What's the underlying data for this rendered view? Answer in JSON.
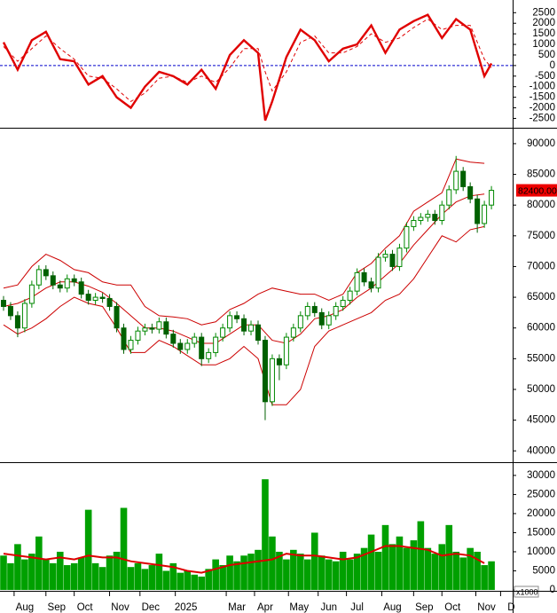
{
  "chart_data": [
    {
      "type": "line",
      "ylim": [
        -2900,
        3100
      ],
      "yticks": [
        -2500,
        -2000,
        -1500,
        -1000,
        -500,
        0,
        500,
        1000,
        1500,
        2000,
        2500
      ],
      "zero_color": "#0000cc",
      "series": [
        {
          "color": "#e00000",
          "style": "solid",
          "x": [
            0,
            2,
            4,
            6,
            8,
            10,
            12,
            14,
            16,
            18,
            20,
            22,
            24,
            26,
            28,
            30,
            32,
            34,
            36,
            37,
            38,
            40,
            42,
            44,
            46,
            48,
            50,
            52,
            54,
            56,
            58,
            60,
            62,
            64,
            66,
            68,
            69
          ],
          "values": [
            1100,
            -200,
            1200,
            1600,
            300,
            200,
            -900,
            -500,
            -1500,
            -2000,
            -1000,
            -300,
            -500,
            -900,
            -200,
            -1100,
            500,
            1200,
            600,
            -2600,
            -1700,
            400,
            1700,
            1200,
            200,
            800,
            1000,
            1900,
            600,
            1700,
            2100,
            2400,
            1300,
            2200,
            1700,
            -500,
            100
          ]
        },
        {
          "color": "#e00000",
          "style": "dashed",
          "x": [
            0,
            2,
            4,
            6,
            8,
            10,
            12,
            14,
            16,
            18,
            20,
            22,
            24,
            26,
            28,
            30,
            32,
            34,
            36,
            37,
            38,
            40,
            42,
            44,
            46,
            48,
            50,
            52,
            54,
            56,
            58,
            60,
            62,
            64,
            66,
            68,
            69
          ],
          "values": [
            900,
            200,
            800,
            1400,
            800,
            300,
            -500,
            -600,
            -1100,
            -1700,
            -1300,
            -600,
            -500,
            -800,
            -500,
            -800,
            -100,
            800,
            800,
            -300,
            -1200,
            -300,
            1100,
            1400,
            600,
            600,
            900,
            1500,
            1100,
            1300,
            1800,
            2200,
            1700,
            1900,
            1900,
            300,
            -100
          ]
        }
      ]
    },
    {
      "type": "candlestick",
      "ylim": [
        38300,
        92300
      ],
      "yticks": [
        40000,
        45000,
        50000,
        55000,
        60000,
        65000,
        70000,
        75000,
        80000,
        85000,
        90000
      ],
      "up_color": "#008800",
      "down_color": "#006000",
      "open": [
        64500,
        63500,
        62000,
        60000,
        64000,
        67000,
        69500,
        68500,
        67000,
        66500,
        68000,
        67500,
        65500,
        64500,
        65000,
        64800,
        63500,
        60000,
        56500,
        58000,
        59500,
        60000,
        59800,
        61000,
        59000,
        57500,
        56500,
        57500,
        58500,
        55000,
        56000,
        58500,
        60000,
        62000,
        61500,
        59500,
        60500,
        58000,
        48000,
        55000,
        54000,
        58500,
        60000,
        62000,
        63500,
        62500,
        60500,
        62000,
        63500,
        64500,
        66000,
        69000,
        67500,
        66500,
        71500,
        72000,
        70000,
        73000,
        76500,
        77500,
        78000,
        78500,
        77500,
        80000,
        82500,
        85500,
        83000,
        81000,
        77000,
        80000
      ],
      "high": [
        65200,
        64200,
        62700,
        64700,
        67700,
        70200,
        70200,
        69200,
        67700,
        68700,
        68700,
        68200,
        66200,
        65700,
        65700,
        65500,
        64200,
        60700,
        58700,
        60200,
        60700,
        60700,
        61700,
        61700,
        59700,
        58200,
        58200,
        59200,
        59200,
        56700,
        59200,
        60700,
        62700,
        62700,
        62200,
        61200,
        61200,
        58700,
        55700,
        55700,
        59200,
        60700,
        62700,
        64200,
        64200,
        63200,
        62700,
        64200,
        65200,
        66700,
        69700,
        69700,
        68200,
        72200,
        72700,
        72700,
        73700,
        77200,
        78200,
        78700,
        79200,
        79200,
        80700,
        83200,
        88000,
        86200,
        83700,
        81700,
        80700,
        83100
      ],
      "low": [
        62800,
        61300,
        58500,
        59300,
        63300,
        66300,
        67800,
        66300,
        65800,
        65800,
        66800,
        64800,
        63800,
        63800,
        64100,
        62800,
        59300,
        55800,
        55800,
        57300,
        58800,
        59100,
        59100,
        58300,
        56800,
        55800,
        55800,
        56800,
        53800,
        54300,
        55300,
        57800,
        59300,
        60800,
        58800,
        58800,
        57300,
        45000,
        47300,
        51500,
        53300,
        57800,
        59300,
        61300,
        61800,
        59800,
        59800,
        61300,
        62800,
        63800,
        65300,
        66800,
        65800,
        65800,
        70800,
        69300,
        69300,
        72300,
        75800,
        76800,
        77300,
        76800,
        76800,
        79300,
        81800,
        82300,
        80300,
        75500,
        76300,
        79300
      ],
      "close": [
        63500,
        62000,
        60000,
        64000,
        67000,
        69500,
        68500,
        67000,
        66500,
        68000,
        67500,
        65500,
        64500,
        65000,
        64800,
        63500,
        60000,
        56500,
        58000,
        59500,
        60000,
        59800,
        61000,
        59000,
        57500,
        56500,
        57500,
        58500,
        55000,
        56000,
        58500,
        60000,
        62000,
        61500,
        59500,
        60500,
        58000,
        48000,
        55000,
        54000,
        58500,
        60000,
        62000,
        63500,
        62500,
        60500,
        62000,
        63500,
        64500,
        66000,
        69000,
        67500,
        66500,
        71500,
        72000,
        70000,
        73000,
        76500,
        77500,
        78000,
        78500,
        77500,
        80000,
        82500,
        85500,
        83000,
        81000,
        77000,
        80000,
        82400
      ],
      "last_label": "82400.00",
      "last_color": "#ee0000",
      "bands": [
        {
          "color": "#cc0000",
          "x": [
            0,
            2,
            4,
            6,
            8,
            10,
            12,
            14,
            16,
            18,
            20,
            22,
            24,
            26,
            28,
            30,
            32,
            34,
            36,
            38,
            40,
            42,
            44,
            46,
            48,
            50,
            52,
            54,
            56,
            58,
            60,
            62,
            64,
            66,
            68
          ],
          "values": [
            66500,
            67000,
            70000,
            72000,
            71000,
            69500,
            69000,
            67500,
            67000,
            67000,
            63500,
            62000,
            61800,
            61500,
            60500,
            61000,
            63000,
            64000,
            65500,
            66500,
            66000,
            65500,
            65500,
            64500,
            65500,
            69000,
            70500,
            73000,
            75000,
            79000,
            80500,
            82000,
            87500,
            87000,
            86800
          ]
        },
        {
          "color": "#cc0000",
          "x": [
            0,
            2,
            4,
            6,
            8,
            10,
            12,
            14,
            16,
            18,
            20,
            22,
            24,
            26,
            28,
            30,
            32,
            34,
            36,
            38,
            40,
            42,
            44,
            46,
            48,
            50,
            52,
            54,
            56,
            58,
            60,
            62,
            64,
            66,
            68
          ],
          "values": [
            63500,
            64000,
            65000,
            66500,
            67500,
            67500,
            66800,
            65800,
            64000,
            62000,
            60000,
            60000,
            59500,
            58500,
            57500,
            57500,
            59000,
            60500,
            60500,
            58000,
            57500,
            59000,
            61500,
            62000,
            63000,
            65000,
            66500,
            68500,
            70500,
            73500,
            76000,
            78500,
            80500,
            81500,
            81800
          ]
        },
        {
          "color": "#cc0000",
          "x": [
            0,
            2,
            4,
            6,
            8,
            10,
            12,
            14,
            16,
            18,
            20,
            22,
            24,
            26,
            28,
            30,
            32,
            34,
            36,
            38,
            40,
            42,
            44,
            46,
            48,
            50,
            52,
            54,
            56,
            58,
            60,
            62,
            64,
            66,
            68
          ],
          "values": [
            60500,
            59000,
            60000,
            61500,
            63500,
            65000,
            64000,
            63500,
            60000,
            56000,
            56000,
            58000,
            57000,
            55500,
            54000,
            54000,
            55000,
            57000,
            55000,
            47500,
            47500,
            50000,
            57000,
            59500,
            60500,
            61500,
            62500,
            64500,
            65500,
            68000,
            71500,
            75000,
            74000,
            76000,
            76500
          ]
        }
      ]
    },
    {
      "type": "bar",
      "ylim": [
        0,
        33000
      ],
      "yticks": [
        0,
        5000,
        10000,
        15000,
        20000,
        25000,
        30000
      ],
      "unit_label": "x1000",
      "color": "#00a000",
      "values": [
        9000,
        7000,
        12000,
        8000,
        9500,
        14000,
        8000,
        7000,
        10000,
        6500,
        7000,
        8500,
        21000,
        7000,
        6000,
        9000,
        10000,
        21500,
        6000,
        7000,
        5500,
        6500,
        9500,
        5000,
        7000,
        4500,
        5000,
        4000,
        3500,
        5500,
        8000,
        6500,
        9000,
        7500,
        9000,
        9500,
        10500,
        29000,
        14000,
        10000,
        8000,
        10500,
        9500,
        8000,
        15000,
        9000,
        8000,
        7500,
        10000,
        8000,
        9500,
        11000,
        14500,
        10000,
        17000,
        12000,
        14000,
        11000,
        13000,
        18000,
        11000,
        9500,
        12000,
        17000,
        10000,
        8500,
        11000,
        10000,
        6500,
        7500
      ],
      "ma": {
        "color": "#dd0000",
        "x": [
          0,
          2,
          4,
          6,
          8,
          10,
          12,
          14,
          16,
          18,
          20,
          22,
          24,
          26,
          28,
          30,
          32,
          34,
          36,
          38,
          40,
          42,
          44,
          46,
          48,
          50,
          52,
          54,
          56,
          58,
          60,
          62,
          64,
          66,
          68
        ],
        "values": [
          9500,
          9000,
          8500,
          8000,
          8500,
          8000,
          9000,
          8500,
          8500,
          7500,
          7000,
          6500,
          6000,
          5000,
          4500,
          5500,
          6500,
          7000,
          7500,
          8000,
          9500,
          9000,
          9000,
          8500,
          8000,
          8500,
          10000,
          11500,
          11500,
          11000,
          10500,
          9000,
          9500,
          9000,
          7000
        ]
      },
      "xlim": [
        -0.5,
        72
      ],
      "xticks": [
        {
          "value": 3,
          "label": "Aug"
        },
        {
          "value": 7.5,
          "label": "Sep"
        },
        {
          "value": 11.5,
          "label": "Oct"
        },
        {
          "value": 16.5,
          "label": "Nov"
        },
        {
          "value": 20.8,
          "label": "Dec"
        },
        {
          "value": 25.8,
          "label": "2025"
        },
        {
          "value": 33,
          "label": "Mar"
        },
        {
          "value": 37,
          "label": "Apr"
        },
        {
          "value": 41.8,
          "label": "May"
        },
        {
          "value": 46,
          "label": "Jun"
        },
        {
          "value": 50,
          "label": "Jul"
        },
        {
          "value": 55,
          "label": "Aug"
        },
        {
          "value": 59.5,
          "label": "Sep"
        },
        {
          "value": 63.5,
          "label": "Oct"
        },
        {
          "value": 68.3,
          "label": "Nov"
        },
        {
          "value": 71.8,
          "label": "D"
        }
      ]
    }
  ]
}
